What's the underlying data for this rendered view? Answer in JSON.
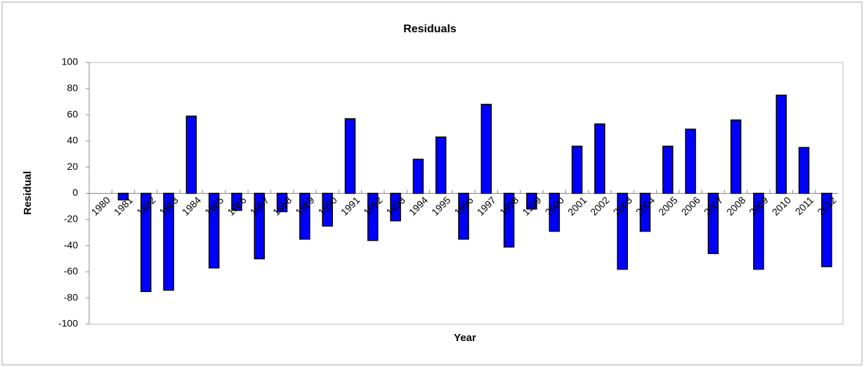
{
  "chart_data": {
    "type": "bar",
    "title": "Residuals",
    "x_label": "Year",
    "y_label": "Residual",
    "categories": [
      "1980",
      "1981",
      "1982",
      "1983",
      "1984",
      "1985",
      "1986",
      "1987",
      "1988",
      "1989",
      "1990",
      "1991",
      "1992",
      "1993",
      "1994",
      "1995",
      "1996",
      "1997",
      "1998",
      "1999",
      "2000",
      "2001",
      "2002",
      "2003",
      "2004",
      "2005",
      "2006",
      "2007",
      "2008",
      "2009",
      "2010",
      "2011",
      "2012"
    ],
    "values": [
      0,
      -5,
      -75,
      -74,
      59,
      -57,
      -13,
      -50,
      -14,
      -35,
      -25,
      57,
      -36,
      -21,
      26,
      43,
      -35,
      68,
      -41,
      -12,
      -29,
      36,
      53,
      -58,
      -29,
      36,
      49,
      -46,
      56,
      -58,
      75,
      35,
      -56
    ],
    "color": "#0000ff",
    "ylim": [
      -100,
      100
    ],
    "yticks": [
      -100,
      -80,
      -60,
      -40,
      -20,
      0,
      20,
      40,
      60,
      80,
      100
    ],
    "grid": false
  }
}
